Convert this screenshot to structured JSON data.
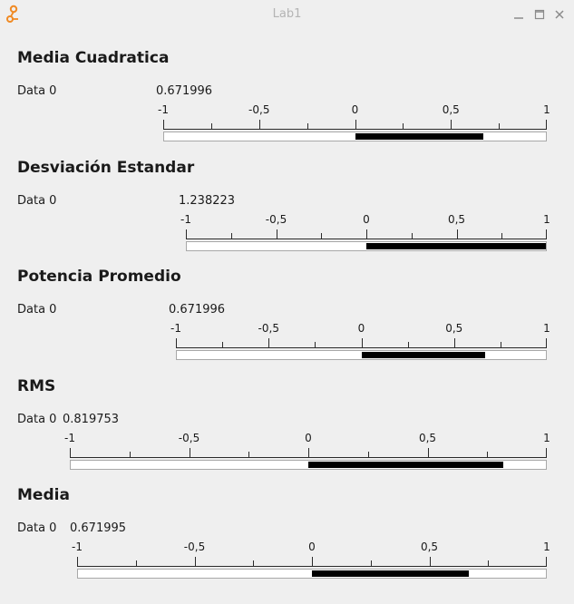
{
  "window": {
    "title": "Lab1",
    "app_icon": "app-logo-icon",
    "buttons": [
      "minimize-icon",
      "maximize-icon",
      "close-icon"
    ]
  },
  "axis": {
    "min": -1,
    "max": 1,
    "labels": [
      "-1",
      "-0,5",
      "0",
      "0,5",
      "1"
    ]
  },
  "sections": [
    {
      "title": "Media Cuadratica",
      "label": "Data 0",
      "value": "0.671996",
      "level": 0.671996
    },
    {
      "title": "Desviación Estandar",
      "label": "Data 0",
      "value": "1.238223",
      "level": 1.238223
    },
    {
      "title": "Potencia Promedio",
      "label": "Data 0",
      "value": "0.671996",
      "level": 0.671996
    },
    {
      "title": "RMS",
      "label": "Data 0",
      "value": "0.819753",
      "level": 0.819753
    },
    {
      "title": "Media",
      "label": "Data 0",
      "value": "0.671995",
      "level": 0.671995
    }
  ],
  "colors": {
    "fill": "#000000",
    "track": "#ffffff",
    "window_bg": "#efefef",
    "icon_accent": "#f08a24"
  }
}
